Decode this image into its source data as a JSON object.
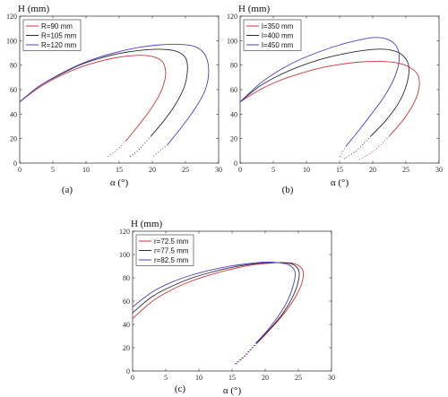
{
  "chart_data": [
    {
      "type": "line",
      "panel_label": "(a)",
      "xlabel": "α (°)",
      "ylabel": "H (mm)",
      "xlim": [
        0,
        30
      ],
      "ylim": [
        0,
        120
      ],
      "xticks": [
        0,
        5,
        10,
        15,
        20,
        25,
        30
      ],
      "yticks": [
        0,
        20,
        40,
        60,
        80,
        100,
        120
      ],
      "legend_position": "top-left",
      "series": [
        {
          "name": "R=90 mm",
          "color": "#d0343c",
          "x": [
            0,
            3,
            6,
            9,
            12,
            15,
            18,
            20,
            21.5,
            22,
            21.8,
            21,
            19.5,
            17.8,
            16,
            14.5,
            13.2
          ],
          "y": [
            50,
            62,
            71,
            78,
            83,
            86.5,
            88,
            87,
            83,
            75,
            66,
            55,
            42,
            30,
            18,
            10,
            5
          ],
          "dotted_from": 13
        },
        {
          "name": "R=105 mm",
          "color": "#2b2b2b",
          "x": [
            0,
            3,
            6,
            9,
            12,
            15,
            18,
            21,
            23.5,
            25,
            25.3,
            24.8,
            23.5,
            21.8,
            19.8,
            17.8,
            16.5
          ],
          "y": [
            50,
            63,
            72,
            80,
            85.5,
            89.5,
            92,
            93,
            91.5,
            86,
            76,
            62,
            48,
            35,
            22,
            10,
            5
          ],
          "dotted_from": 13
        },
        {
          "name": "R=120 mm",
          "color": "#4b3fc4",
          "x": [
            0,
            3,
            6,
            9,
            12,
            15,
            18,
            21,
            24,
            26.5,
            28,
            28.5,
            28,
            26.5,
            24.5,
            22.3,
            20
          ],
          "y": [
            50,
            63,
            72.5,
            80.5,
            86.5,
            91,
            94.5,
            96.5,
            97,
            95,
            88,
            75,
            60,
            45,
            30,
            15,
            5
          ],
          "dotted_from": 14
        }
      ]
    },
    {
      "type": "line",
      "panel_label": "(b)",
      "xlabel": "α (°)",
      "ylabel": "H (mm)",
      "xlim": [
        0,
        30
      ],
      "ylim": [
        0,
        120
      ],
      "xticks": [
        0,
        5,
        10,
        15,
        20,
        25,
        30
      ],
      "yticks": [
        0,
        20,
        40,
        60,
        80,
        100,
        120
      ],
      "legend_position": "top-left",
      "series": [
        {
          "name": "l=350 mm",
          "color": "#d0343c",
          "x": [
            0,
            3,
            6,
            9,
            12,
            15,
            18,
            21,
            23.5,
            25.5,
            26.8,
            27,
            26.3,
            24.7,
            22.5,
            20.2,
            18
          ],
          "y": [
            50,
            60,
            67.5,
            73,
            77.5,
            80.5,
            82.5,
            83,
            82,
            78.5,
            72,
            62,
            50,
            36,
            22,
            10,
            3
          ],
          "dotted_from": 14
        },
        {
          "name": "l=400 mm",
          "color": "#2b2b2b",
          "x": [
            0,
            3,
            6,
            9,
            12,
            15,
            18,
            20.5,
            22.5,
            24.3,
            25.4,
            25.2,
            24,
            22,
            19.7,
            17.5,
            15.5
          ],
          "y": [
            50,
            63,
            72,
            79,
            84.5,
            88.5,
            91.5,
            93,
            92.5,
            89,
            80,
            66,
            50,
            35,
            22,
            10,
            3
          ],
          "dotted_from": 14
        },
        {
          "name": "l=450 mm",
          "color": "#4b3fc4",
          "x": [
            0,
            3,
            6,
            9,
            12,
            15,
            17.5,
            20,
            22,
            23.5,
            24,
            23.3,
            21.8,
            19.8,
            17.8,
            16,
            15
          ],
          "y": [
            50,
            65,
            76,
            84.5,
            91,
            96.5,
            100,
            102.5,
            101.5,
            96,
            85,
            70,
            55,
            40,
            26,
            14,
            5
          ],
          "dotted_from": 14
        }
      ]
    },
    {
      "type": "line",
      "panel_label": "(c)",
      "xlabel": "α (°)",
      "ylabel": "H (mm)",
      "xlim": [
        0,
        30
      ],
      "ylim": [
        0,
        120
      ],
      "xticks": [
        0,
        5,
        10,
        15,
        20,
        25,
        30
      ],
      "yticks": [
        0,
        20,
        40,
        60,
        80,
        100,
        120
      ],
      "legend_position": "top-left",
      "series": [
        {
          "name": "r=72.5 mm",
          "color": "#d0343c",
          "x": [
            0,
            3,
            6,
            9,
            12,
            15,
            18,
            20.5,
            22.5,
            24.5,
            25.7,
            25.5,
            24.4,
            22.8,
            20.8,
            18.8,
            17.2,
            15.5
          ],
          "y": [
            45,
            60,
            70,
            77.5,
            83,
            87.5,
            91,
            92.5,
            93,
            92,
            86,
            75,
            62,
            49,
            36,
            24,
            14,
            5
          ],
          "dotted_from": 15
        },
        {
          "name": "r=77.5 mm",
          "color": "#2b2b2b",
          "x": [
            0,
            3,
            6,
            9,
            12,
            15,
            18,
            20.5,
            22.5,
            24.2,
            25.1,
            24.9,
            24,
            22.6,
            20.7,
            18.7,
            17.1,
            15.3
          ],
          "y": [
            50,
            64,
            73,
            80,
            85,
            89,
            91.8,
            93,
            93,
            91.5,
            85.5,
            75,
            62,
            49,
            36,
            24,
            14,
            5
          ],
          "dotted_from": 15
        },
        {
          "name": "r=82.5 mm",
          "color": "#4b3fc4",
          "x": [
            0,
            3,
            6,
            9,
            12,
            15,
            18,
            20,
            22,
            23.6,
            24.5,
            24.3,
            23.5,
            22.2,
            20.5,
            18.6,
            17,
            15.2
          ],
          "y": [
            55,
            68,
            76.5,
            82.5,
            87,
            90.3,
            92.5,
            93.5,
            93,
            91,
            85,
            75,
            62,
            49,
            36,
            24,
            14,
            5
          ],
          "dotted_from": 15
        }
      ]
    }
  ]
}
